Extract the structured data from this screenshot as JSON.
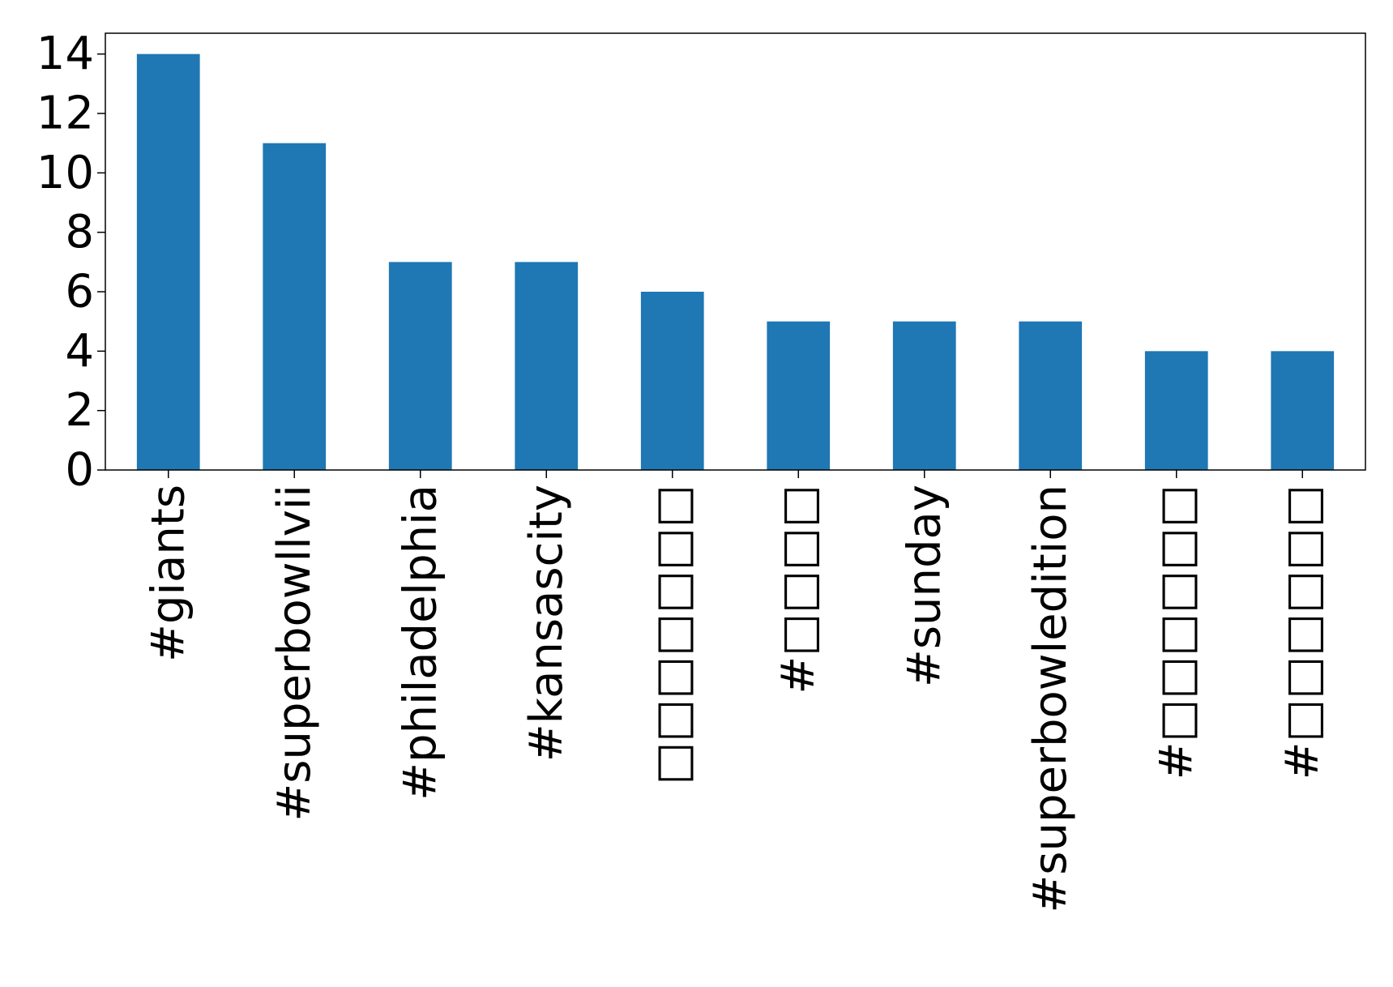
{
  "chart_data": {
    "type": "bar",
    "categories": [
      "#giants",
      "#superbowllvii",
      "#philadelphia",
      "#kansascity",
      "□□□□□□□",
      "#□□□□",
      "#sunday",
      "#superbowledition",
      "#□□□□□□",
      "#□□□□□□"
    ],
    "values": [
      14,
      11,
      7,
      7,
      6,
      5,
      5,
      5,
      4,
      4
    ],
    "yticks": [
      0,
      2,
      4,
      6,
      8,
      10,
      12,
      14
    ],
    "ylim": [
      0,
      14.7
    ],
    "bar_color": "#1f77b4",
    "grid": false,
    "title": "",
    "xlabel": "",
    "ylabel": ""
  }
}
